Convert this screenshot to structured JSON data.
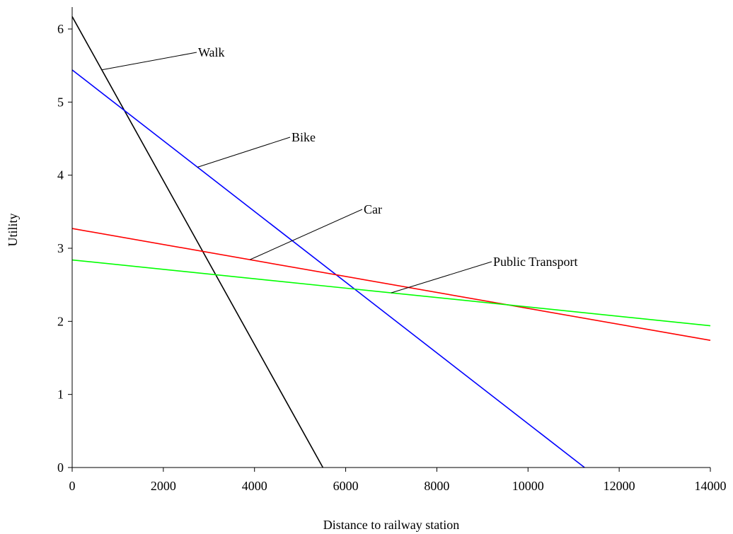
{
  "chart_data": {
    "type": "line",
    "title": "",
    "xlabel": "Distance to railway station",
    "ylabel": "Utility",
    "xlim": [
      0,
      14000
    ],
    "ylim": [
      0,
      6.3
    ],
    "xticks": [
      0,
      2000,
      4000,
      6000,
      8000,
      10000,
      12000,
      14000
    ],
    "yticks": [
      0,
      1,
      2,
      3,
      4,
      5,
      6
    ],
    "grid": false,
    "legend": "none",
    "series": [
      {
        "name": "Walk",
        "color": "#000000",
        "x": [
          0,
          5500
        ],
        "y": [
          6.17,
          0.0
        ]
      },
      {
        "name": "Bike",
        "color": "#0000ff",
        "x": [
          0,
          11240
        ],
        "y": [
          5.44,
          0.0
        ]
      },
      {
        "name": "Car",
        "color": "#ff0000",
        "x": [
          0,
          14000
        ],
        "y": [
          3.27,
          1.74
        ]
      },
      {
        "name": "Public Transport",
        "color": "#00ff00",
        "x": [
          0,
          14000
        ],
        "y": [
          2.84,
          1.94
        ]
      }
    ],
    "annotations": [
      {
        "text": "Walk",
        "series": "Walk",
        "at_x": 650
      },
      {
        "text": "Bike",
        "series": "Bike",
        "at_x": 2750
      },
      {
        "text": "Car",
        "series": "Car",
        "at_x": 3900
      },
      {
        "text": "Public Transport",
        "series": "Public Transport",
        "at_x": 7000
      }
    ]
  }
}
